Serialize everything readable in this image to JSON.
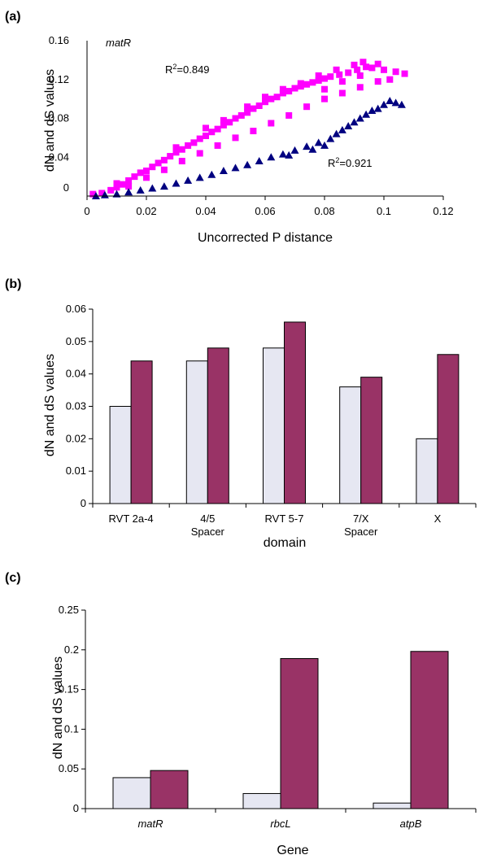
{
  "colors": {
    "series1": "#e6e7f2",
    "series2": "#993366",
    "pink": "#ff00ff",
    "navy": "#000080"
  },
  "chart_data": [
    {
      "panel": "(a)",
      "type": "scatter",
      "annotation": "matR",
      "xlabel": "Uncorrected P distance",
      "ylabel": "dN and dS values",
      "xlim": [
        0,
        0.12
      ],
      "ylim": [
        0,
        0.16
      ],
      "xticks": [
        "0",
        "0.02",
        "0.04",
        "0.06",
        "0.08",
        "0.1",
        "0.12"
      ],
      "yticks": [
        "0",
        "0.04",
        "0.08",
        "0.12",
        "0.16"
      ],
      "r2_labels": [
        {
          "base": "R",
          "sup": "2",
          "rest": "=0.849"
        },
        {
          "base": "R",
          "sup": "2",
          "rest": "=0.921"
        }
      ],
      "series": [
        {
          "color": "#ff00ff",
          "marker": "square",
          "points": [
            [
              0.002,
              0.002
            ],
            [
              0.005,
              0.003
            ],
            [
              0.008,
              0.006
            ],
            [
              0.01,
              0.009
            ],
            [
              0.012,
              0.012
            ],
            [
              0.014,
              0.016
            ],
            [
              0.016,
              0.02
            ],
            [
              0.018,
              0.024
            ],
            [
              0.02,
              0.026
            ],
            [
              0.022,
              0.03
            ],
            [
              0.024,
              0.034
            ],
            [
              0.026,
              0.037
            ],
            [
              0.028,
              0.041
            ],
            [
              0.03,
              0.045
            ],
            [
              0.032,
              0.048
            ],
            [
              0.034,
              0.052
            ],
            [
              0.036,
              0.055
            ],
            [
              0.038,
              0.059
            ],
            [
              0.04,
              0.062
            ],
            [
              0.042,
              0.066
            ],
            [
              0.044,
              0.069
            ],
            [
              0.046,
              0.073
            ],
            [
              0.048,
              0.076
            ],
            [
              0.05,
              0.08
            ],
            [
              0.052,
              0.083
            ],
            [
              0.054,
              0.086
            ],
            [
              0.056,
              0.09
            ],
            [
              0.058,
              0.093
            ],
            [
              0.06,
              0.097
            ],
            [
              0.062,
              0.1
            ],
            [
              0.064,
              0.102
            ],
            [
              0.066,
              0.106
            ],
            [
              0.068,
              0.108
            ],
            [
              0.07,
              0.111
            ],
            [
              0.072,
              0.113
            ],
            [
              0.074,
              0.115
            ],
            [
              0.076,
              0.117
            ],
            [
              0.078,
              0.119
            ],
            [
              0.08,
              0.121
            ],
            [
              0.082,
              0.123
            ],
            [
              0.085,
              0.125
            ],
            [
              0.088,
              0.127
            ],
            [
              0.091,
              0.13
            ],
            [
              0.094,
              0.133
            ],
            [
              0.096,
              0.132
            ],
            [
              0.1,
              0.13
            ],
            [
              0.104,
              0.128
            ],
            [
              0.107,
              0.126
            ],
            [
              0.014,
              0.01
            ],
            [
              0.02,
              0.019
            ],
            [
              0.026,
              0.027
            ],
            [
              0.032,
              0.036
            ],
            [
              0.038,
              0.044
            ],
            [
              0.044,
              0.052
            ],
            [
              0.05,
              0.06
            ],
            [
              0.056,
              0.067
            ],
            [
              0.062,
              0.075
            ],
            [
              0.068,
              0.083
            ],
            [
              0.074,
              0.092
            ],
            [
              0.08,
              0.1
            ],
            [
              0.086,
              0.106
            ],
            [
              0.092,
              0.112
            ],
            [
              0.098,
              0.118
            ],
            [
              0.102,
              0.12
            ],
            [
              0.01,
              0.013
            ],
            [
              0.03,
              0.05
            ],
            [
              0.04,
              0.07
            ],
            [
              0.046,
              0.078
            ],
            [
              0.054,
              0.092
            ],
            [
              0.06,
              0.102
            ],
            [
              0.066,
              0.11
            ],
            [
              0.072,
              0.116
            ],
            [
              0.078,
              0.124
            ],
            [
              0.084,
              0.13
            ],
            [
              0.09,
              0.135
            ],
            [
              0.093,
              0.138
            ],
            [
              0.098,
              0.136
            ],
            [
              0.08,
              0.11
            ],
            [
              0.086,
              0.118
            ],
            [
              0.092,
              0.124
            ]
          ]
        },
        {
          "color": "#000080",
          "marker": "triangle",
          "points": [
            [
              0.003,
              0.0
            ],
            [
              0.006,
              0.001
            ],
            [
              0.01,
              0.002
            ],
            [
              0.014,
              0.004
            ],
            [
              0.018,
              0.006
            ],
            [
              0.022,
              0.008
            ],
            [
              0.026,
              0.01
            ],
            [
              0.03,
              0.013
            ],
            [
              0.034,
              0.016
            ],
            [
              0.038,
              0.019
            ],
            [
              0.042,
              0.022
            ],
            [
              0.046,
              0.026
            ],
            [
              0.05,
              0.029
            ],
            [
              0.054,
              0.032
            ],
            [
              0.058,
              0.036
            ],
            [
              0.062,
              0.04
            ],
            [
              0.066,
              0.043
            ],
            [
              0.07,
              0.047
            ],
            [
              0.074,
              0.051
            ],
            [
              0.078,
              0.055
            ],
            [
              0.082,
              0.059
            ],
            [
              0.084,
              0.064
            ],
            [
              0.086,
              0.068
            ],
            [
              0.088,
              0.072
            ],
            [
              0.09,
              0.076
            ],
            [
              0.092,
              0.08
            ],
            [
              0.094,
              0.084
            ],
            [
              0.096,
              0.088
            ],
            [
              0.1,
              0.094
            ],
            [
              0.104,
              0.096
            ],
            [
              0.106,
              0.094
            ],
            [
              0.068,
              0.042
            ],
            [
              0.076,
              0.048
            ],
            [
              0.08,
              0.052
            ],
            [
              0.098,
              0.09
            ],
            [
              0.102,
              0.098
            ]
          ]
        }
      ]
    },
    {
      "panel": "(b)",
      "type": "bar",
      "xlabel": "domain",
      "ylabel": "dN and dS values",
      "ylim": [
        0,
        0.06
      ],
      "yticks": [
        "0",
        "0.01",
        "0.02",
        "0.03",
        "0.04",
        "0.05",
        "0.06"
      ],
      "categories": [
        {
          "lines": [
            "RVT 2a-4"
          ]
        },
        {
          "lines": [
            "4/5",
            "Spacer"
          ]
        },
        {
          "lines": [
            "RVT 5-7"
          ]
        },
        {
          "lines": [
            "7/X",
            "Spacer"
          ]
        },
        {
          "lines": [
            "X"
          ]
        }
      ],
      "series": [
        {
          "color": "#e6e7f2",
          "values": [
            0.03,
            0.044,
            0.048,
            0.036,
            0.02
          ]
        },
        {
          "color": "#993366",
          "values": [
            0.044,
            0.048,
            0.056,
            0.039,
            0.046
          ]
        }
      ]
    },
    {
      "panel": "(c)",
      "type": "bar",
      "xlabel": "Gene",
      "ylabel": "dN and dS values",
      "ylim": [
        0,
        0.25
      ],
      "yticks": [
        "0",
        "0.05",
        "0.1",
        "0.15",
        "0.2",
        "0.25"
      ],
      "italic_categories": true,
      "categories": [
        {
          "lines": [
            "matR"
          ]
        },
        {
          "lines": [
            "rbcL"
          ]
        },
        {
          "lines": [
            "atpB"
          ]
        }
      ],
      "series": [
        {
          "color": "#e6e7f2",
          "values": [
            0.039,
            0.019,
            0.007
          ]
        },
        {
          "color": "#993366",
          "values": [
            0.048,
            0.189,
            0.198
          ]
        }
      ]
    }
  ]
}
